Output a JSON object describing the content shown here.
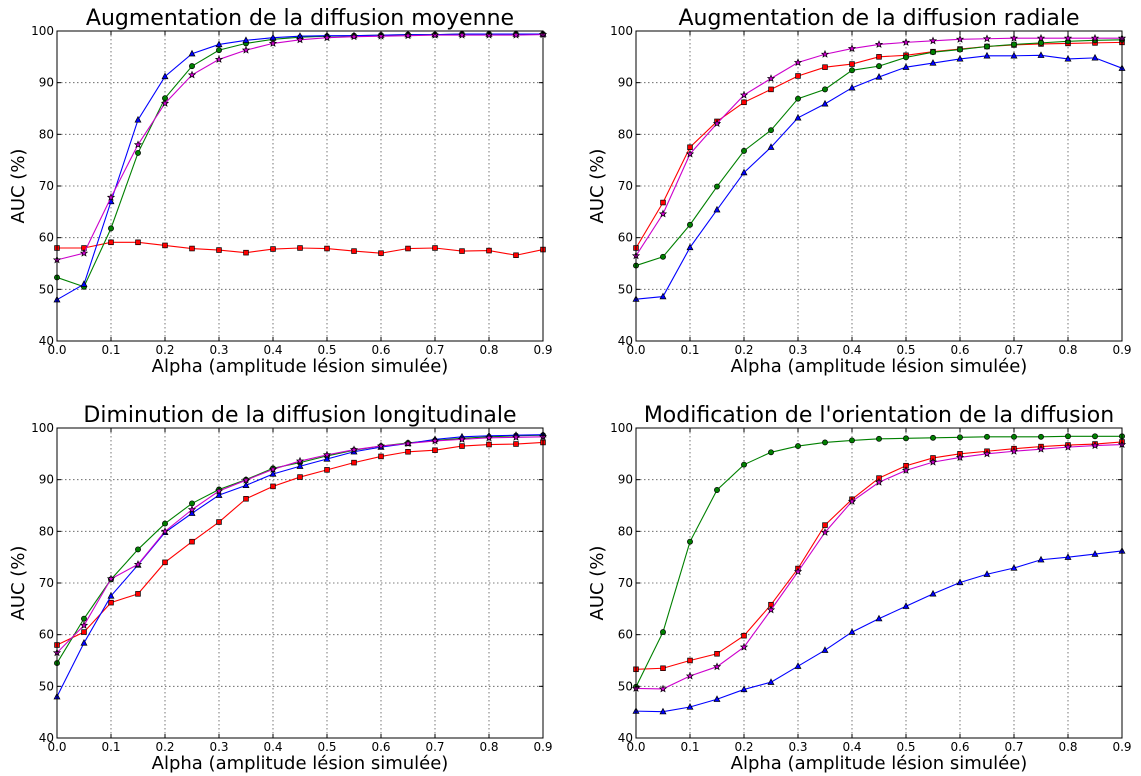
{
  "chart_data": [
    {
      "type": "line",
      "title": "Augmentation de la diffusion moyenne",
      "xlabel": "Alpha (amplitude lésion simulée)",
      "ylabel": "AUC (%)",
      "xlim": [
        0.0,
        0.9
      ],
      "ylim": [
        40,
        100
      ],
      "xticks": [
        "0.0",
        "0.1",
        "0.2",
        "0.3",
        "0.4",
        "0.5",
        "0.6",
        "0.7",
        "0.8",
        "0.9"
      ],
      "yticks": [
        "40",
        "50",
        "60",
        "70",
        "80",
        "90",
        "100"
      ],
      "grid": true,
      "x": [
        0.0,
        0.05,
        0.1,
        0.15,
        0.2,
        0.25,
        0.3,
        0.35,
        0.4,
        0.45,
        0.5,
        0.55,
        0.6,
        0.65,
        0.7,
        0.75,
        0.8,
        0.85,
        0.9
      ],
      "series": [
        {
          "color": "#ff0000",
          "marker": "square",
          "values": [
            58.0,
            58.0,
            59.1,
            59.1,
            58.5,
            57.9,
            57.6,
            57.1,
            57.8,
            58.0,
            57.9,
            57.4,
            57.0,
            57.9,
            58.0,
            57.4,
            57.5,
            56.6,
            57.7
          ]
        },
        {
          "color": "#008000",
          "marker": "circle",
          "values": [
            52.3,
            50.5,
            61.8,
            76.4,
            87.0,
            93.2,
            96.3,
            97.6,
            98.4,
            98.8,
            99.0,
            99.1,
            99.2,
            99.3,
            99.3,
            99.4,
            99.4,
            99.4,
            99.4
          ]
        },
        {
          "color": "#0000ff",
          "marker": "triangle",
          "values": [
            48.0,
            51.0,
            67.0,
            82.8,
            91.2,
            95.6,
            97.4,
            98.2,
            98.7,
            99.0,
            99.1,
            99.1,
            99.2,
            99.3,
            99.3,
            99.4,
            99.4,
            99.4,
            99.4
          ]
        },
        {
          "color": "#cc00cc",
          "marker": "star",
          "values": [
            55.7,
            57.0,
            67.8,
            78.0,
            86.0,
            91.5,
            94.5,
            96.3,
            97.6,
            98.3,
            98.7,
            98.9,
            99.0,
            99.1,
            99.2,
            99.2,
            99.2,
            99.2,
            99.3
          ]
        }
      ]
    },
    {
      "type": "line",
      "title": "Augmentation de la diffusion radiale",
      "xlabel": "Alpha (amplitude lésion simulée)",
      "ylabel": "AUC (%)",
      "xlim": [
        0.0,
        0.9
      ],
      "ylim": [
        40,
        100
      ],
      "xticks": [
        "0.0",
        "0.1",
        "0.2",
        "0.3",
        "0.4",
        "0.5",
        "0.6",
        "0.7",
        "0.8",
        "0.9"
      ],
      "yticks": [
        "40",
        "50",
        "60",
        "70",
        "80",
        "90",
        "100"
      ],
      "grid": true,
      "x": [
        0.0,
        0.05,
        0.1,
        0.15,
        0.2,
        0.25,
        0.3,
        0.35,
        0.4,
        0.45,
        0.5,
        0.55,
        0.6,
        0.65,
        0.7,
        0.75,
        0.8,
        0.85,
        0.9
      ],
      "series": [
        {
          "color": "#ff0000",
          "marker": "square",
          "values": [
            58.0,
            66.8,
            77.5,
            82.5,
            86.2,
            88.7,
            91.3,
            93.0,
            93.6,
            95.0,
            95.3,
            96.0,
            96.5,
            97.0,
            97.3,
            97.5,
            97.6,
            97.7,
            97.8
          ]
        },
        {
          "color": "#008000",
          "marker": "circle",
          "values": [
            54.6,
            56.3,
            62.5,
            69.9,
            76.8,
            80.8,
            86.9,
            88.7,
            92.4,
            93.2,
            94.9,
            95.9,
            96.4,
            97.0,
            97.4,
            97.7,
            98.0,
            98.2,
            98.3
          ]
        },
        {
          "color": "#0000ff",
          "marker": "triangle",
          "values": [
            48.1,
            48.6,
            58.1,
            65.4,
            72.6,
            77.5,
            83.2,
            85.9,
            89.0,
            91.1,
            93.0,
            93.8,
            94.6,
            95.2,
            95.2,
            95.3,
            94.6,
            94.8,
            92.8
          ]
        },
        {
          "color": "#cc00cc",
          "marker": "star",
          "values": [
            56.5,
            64.6,
            76.2,
            82.1,
            87.6,
            90.8,
            93.9,
            95.5,
            96.6,
            97.4,
            97.8,
            98.1,
            98.4,
            98.5,
            98.6,
            98.6,
            98.6,
            98.6,
            98.6
          ]
        }
      ]
    },
    {
      "type": "line",
      "title": "Diminution de la diffusion longitudinale",
      "xlabel": "Alpha (amplitude lésion simulée)",
      "ylabel": "AUC (%)",
      "xlim": [
        0.0,
        0.9
      ],
      "ylim": [
        40,
        100
      ],
      "xticks": [
        "0.0",
        "0.1",
        "0.2",
        "0.3",
        "0.4",
        "0.5",
        "0.6",
        "0.7",
        "0.8",
        "0.9"
      ],
      "yticks": [
        "40",
        "50",
        "60",
        "70",
        "80",
        "90",
        "100"
      ],
      "grid": true,
      "x": [
        0.0,
        0.05,
        0.1,
        0.15,
        0.2,
        0.25,
        0.3,
        0.35,
        0.4,
        0.45,
        0.5,
        0.55,
        0.6,
        0.65,
        0.7,
        0.75,
        0.8,
        0.85,
        0.9
      ],
      "series": [
        {
          "color": "#ff0000",
          "marker": "square",
          "values": [
            58.0,
            60.5,
            66.2,
            67.9,
            74.0,
            78.0,
            81.8,
            86.3,
            88.7,
            90.5,
            91.9,
            93.3,
            94.5,
            95.4,
            95.7,
            96.5,
            96.8,
            96.9,
            97.2
          ]
        },
        {
          "color": "#008000",
          "marker": "circle",
          "values": [
            54.5,
            63.1,
            70.7,
            76.5,
            81.5,
            85.4,
            88.1,
            90.0,
            92.2,
            93.3,
            94.6,
            95.7,
            96.5,
            97.1,
            97.6,
            98.0,
            98.3,
            98.5,
            98.6
          ]
        },
        {
          "color": "#0000ff",
          "marker": "triangle",
          "values": [
            48.0,
            58.4,
            67.5,
            73.5,
            79.8,
            83.5,
            87.0,
            88.9,
            91.1,
            92.6,
            94.0,
            95.4,
            96.3,
            97.0,
            97.8,
            98.3,
            98.5,
            98.6,
            98.7
          ]
        },
        {
          "color": "#cc00cc",
          "marker": "star",
          "values": [
            56.5,
            61.8,
            70.8,
            73.6,
            80.0,
            84.2,
            87.8,
            89.9,
            92.0,
            93.6,
            94.8,
            95.8,
            96.5,
            97.0,
            97.5,
            97.8,
            98.1,
            98.2,
            98.3
          ]
        }
      ]
    },
    {
      "type": "line",
      "title": "Modification de l'orientation de la diffusion",
      "xlabel": "Alpha (amplitude lésion simulée)",
      "ylabel": "AUC (%)",
      "xlim": [
        0.0,
        0.9
      ],
      "ylim": [
        40,
        100
      ],
      "xticks": [
        "0.0",
        "0.1",
        "0.2",
        "0.3",
        "0.4",
        "0.5",
        "0.6",
        "0.7",
        "0.8",
        "0.9"
      ],
      "yticks": [
        "40",
        "50",
        "60",
        "70",
        "80",
        "90",
        "100"
      ],
      "grid": true,
      "x": [
        0.0,
        0.05,
        0.1,
        0.15,
        0.2,
        0.25,
        0.3,
        0.35,
        0.4,
        0.45,
        0.5,
        0.55,
        0.6,
        0.65,
        0.7,
        0.75,
        0.8,
        0.85,
        0.9
      ],
      "series": [
        {
          "color": "#ff0000",
          "marker": "square",
          "values": [
            53.3,
            53.5,
            55.0,
            56.3,
            59.8,
            65.8,
            72.8,
            81.2,
            86.2,
            90.3,
            92.7,
            94.2,
            95.0,
            95.5,
            96.0,
            96.4,
            96.7,
            96.9,
            97.3
          ]
        },
        {
          "color": "#008000",
          "marker": "circle",
          "values": [
            49.9,
            60.5,
            78.0,
            88.0,
            92.9,
            95.3,
            96.5,
            97.2,
            97.6,
            97.9,
            98.0,
            98.1,
            98.2,
            98.3,
            98.3,
            98.3,
            98.4,
            98.4,
            98.4
          ]
        },
        {
          "color": "#0000ff",
          "marker": "triangle",
          "values": [
            45.2,
            45.1,
            46.0,
            47.5,
            49.4,
            50.8,
            53.9,
            57.0,
            60.5,
            63.1,
            65.5,
            67.9,
            70.1,
            71.7,
            72.9,
            74.5,
            75.0,
            75.6,
            76.2
          ]
        },
        {
          "color": "#cc00cc",
          "marker": "star",
          "values": [
            49.6,
            49.5,
            52.0,
            53.8,
            57.6,
            64.8,
            72.2,
            79.8,
            85.8,
            89.5,
            91.8,
            93.4,
            94.3,
            95.0,
            95.5,
            95.9,
            96.3,
            96.6,
            96.8
          ]
        }
      ]
    }
  ]
}
